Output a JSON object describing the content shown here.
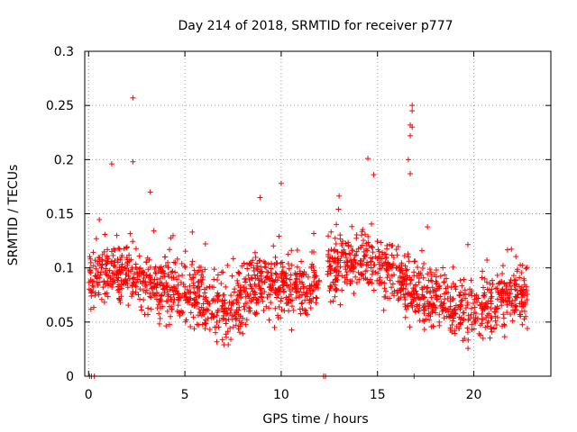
{
  "chart_data": {
    "type": "scatter",
    "title": "Day 214 of 2018, SRMTID for receiver p777",
    "xlabel": "GPS time / hours",
    "ylabel": "SRMTID / TECUs",
    "xlim": [
      -0.2,
      24
    ],
    "ylim": [
      0,
      0.3
    ],
    "x_ticks": [
      0,
      5,
      10,
      15,
      20
    ],
    "y_ticks": [
      0,
      0.05,
      0.1,
      0.15,
      0.2,
      0.25,
      0.3
    ],
    "x_tick_labels": [
      "0",
      "5",
      "10",
      "15",
      "20"
    ],
    "y_tick_labels": [
      "0",
      "0.05",
      "0.1",
      "0.15",
      "0.2",
      "0.25",
      "0.3"
    ],
    "grid": true,
    "marker": "plus",
    "color": "#ff0000",
    "gap_hours": [
      12.0,
      12.4
    ],
    "zero_value_points": [
      {
        "x": 0.05,
        "y": 0
      },
      {
        "x": 0.15,
        "y": 0
      },
      {
        "x": 0.3,
        "y": 0
      },
      {
        "x": 12.2,
        "y": 0
      },
      {
        "x": 12.3,
        "y": 0
      },
      {
        "x": 16.9,
        "y": 0
      }
    ],
    "outliers": [
      {
        "x": 2.3,
        "y": 0.257
      },
      {
        "x": 2.3,
        "y": 0.198
      },
      {
        "x": 1.2,
        "y": 0.196
      },
      {
        "x": 14.5,
        "y": 0.201
      },
      {
        "x": 16.8,
        "y": 0.25
      },
      {
        "x": 16.8,
        "y": 0.245
      },
      {
        "x": 16.7,
        "y": 0.232
      },
      {
        "x": 16.8,
        "y": 0.23
      },
      {
        "x": 16.7,
        "y": 0.222
      },
      {
        "x": 16.6,
        "y": 0.2
      },
      {
        "x": 16.7,
        "y": 0.187
      },
      {
        "x": 14.8,
        "y": 0.186
      },
      {
        "x": 8.9,
        "y": 0.165
      },
      {
        "x": 10.0,
        "y": 0.178
      },
      {
        "x": 3.2,
        "y": 0.17
      }
    ],
    "level_profile": [
      {
        "x": 0.0,
        "y": 0.09
      },
      {
        "x": 1.0,
        "y": 0.1
      },
      {
        "x": 3.0,
        "y": 0.085
      },
      {
        "x": 5.0,
        "y": 0.075
      },
      {
        "x": 7.5,
        "y": 0.06
      },
      {
        "x": 9.0,
        "y": 0.085
      },
      {
        "x": 11.5,
        "y": 0.08
      },
      {
        "x": 12.5,
        "y": 0.1
      },
      {
        "x": 14.5,
        "y": 0.105
      },
      {
        "x": 16.0,
        "y": 0.09
      },
      {
        "x": 17.5,
        "y": 0.075
      },
      {
        "x": 20.0,
        "y": 0.06
      },
      {
        "x": 22.0,
        "y": 0.075
      },
      {
        "x": 22.8,
        "y": 0.075
      }
    ],
    "spread": 0.028,
    "samples_per_hour": 80
  }
}
